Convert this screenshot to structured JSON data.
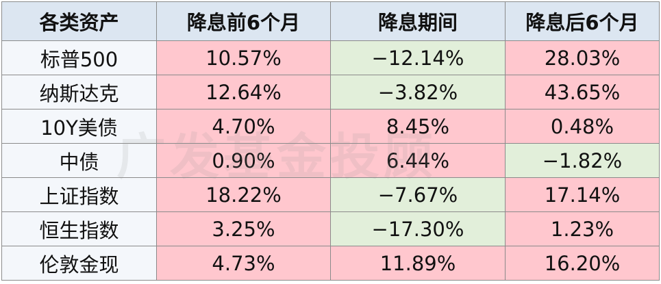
{
  "header": [
    "各类资产",
    "降息前6个月",
    "降息期间",
    "降息后6个月"
  ],
  "rows": [
    [
      "标普500",
      "10.57%",
      "−12.14%",
      "28.03%"
    ],
    [
      "纳斯达克",
      "12.64%",
      "−3.82%",
      "43.65%"
    ],
    [
      "10Y美债",
      "4.70%",
      "8.45%",
      "0.48%"
    ],
    [
      "中债",
      "0.90%",
      "6.44%",
      "−1.82%"
    ],
    [
      "上证指数",
      "18.22%",
      "−7.67%",
      "17.14%"
    ],
    [
      "恒生指数",
      "3.25%",
      "−17.30%",
      "1.23%"
    ],
    [
      "伦敦金现",
      "4.73%",
      "11.89%",
      "16.20%"
    ]
  ],
  "watermark": "广发基金投顾",
  "colors": {
    "header": "#dce6f1",
    "label": "#f4f7fb",
    "up": "#ffc7ce",
    "down": "#e2efda"
  }
}
